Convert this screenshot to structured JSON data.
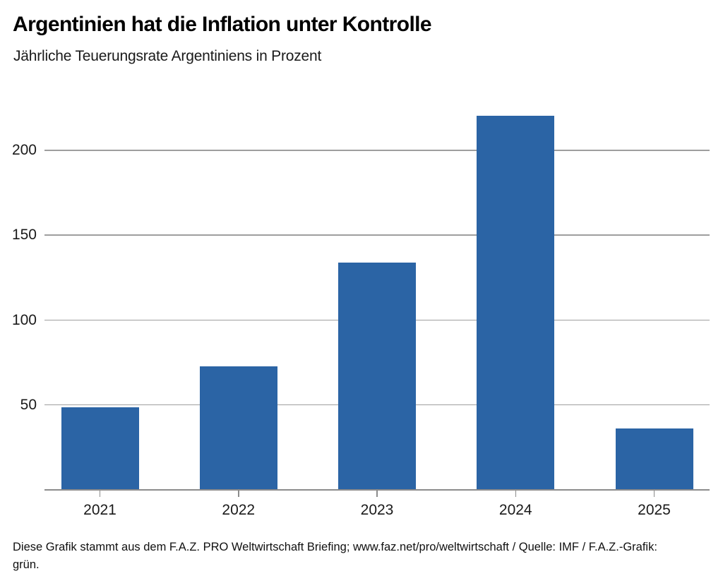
{
  "chart_data": {
    "type": "bar",
    "title": "Argentinien hat die Inflation unter Kontrolle",
    "subtitle": "Jährliche Teuerungsrate Argentiniens in Prozent",
    "categories": [
      "2021",
      "2022",
      "2023",
      "2024",
      "2025"
    ],
    "values": [
      48.4,
      72.4,
      133.5,
      219.9,
      35.9
    ],
    "xlabel": "",
    "ylabel": "",
    "ylim": [
      0,
      230
    ],
    "yticks": [
      50,
      100,
      150,
      200
    ],
    "grid": true,
    "legend": false,
    "bar_color": "#2b64a5",
    "grid_color": "#9e9e9e",
    "axis_color": "#8c8c8c"
  },
  "footer": {
    "lines": [
      "Diese Grafik stammt aus dem F.A.Z. PRO Weltwirtschaft Briefing; www.faz.net/pro/weltwirtschaft / Quelle: IMF / F.A.Z.-Grafik:",
      "grün."
    ]
  }
}
